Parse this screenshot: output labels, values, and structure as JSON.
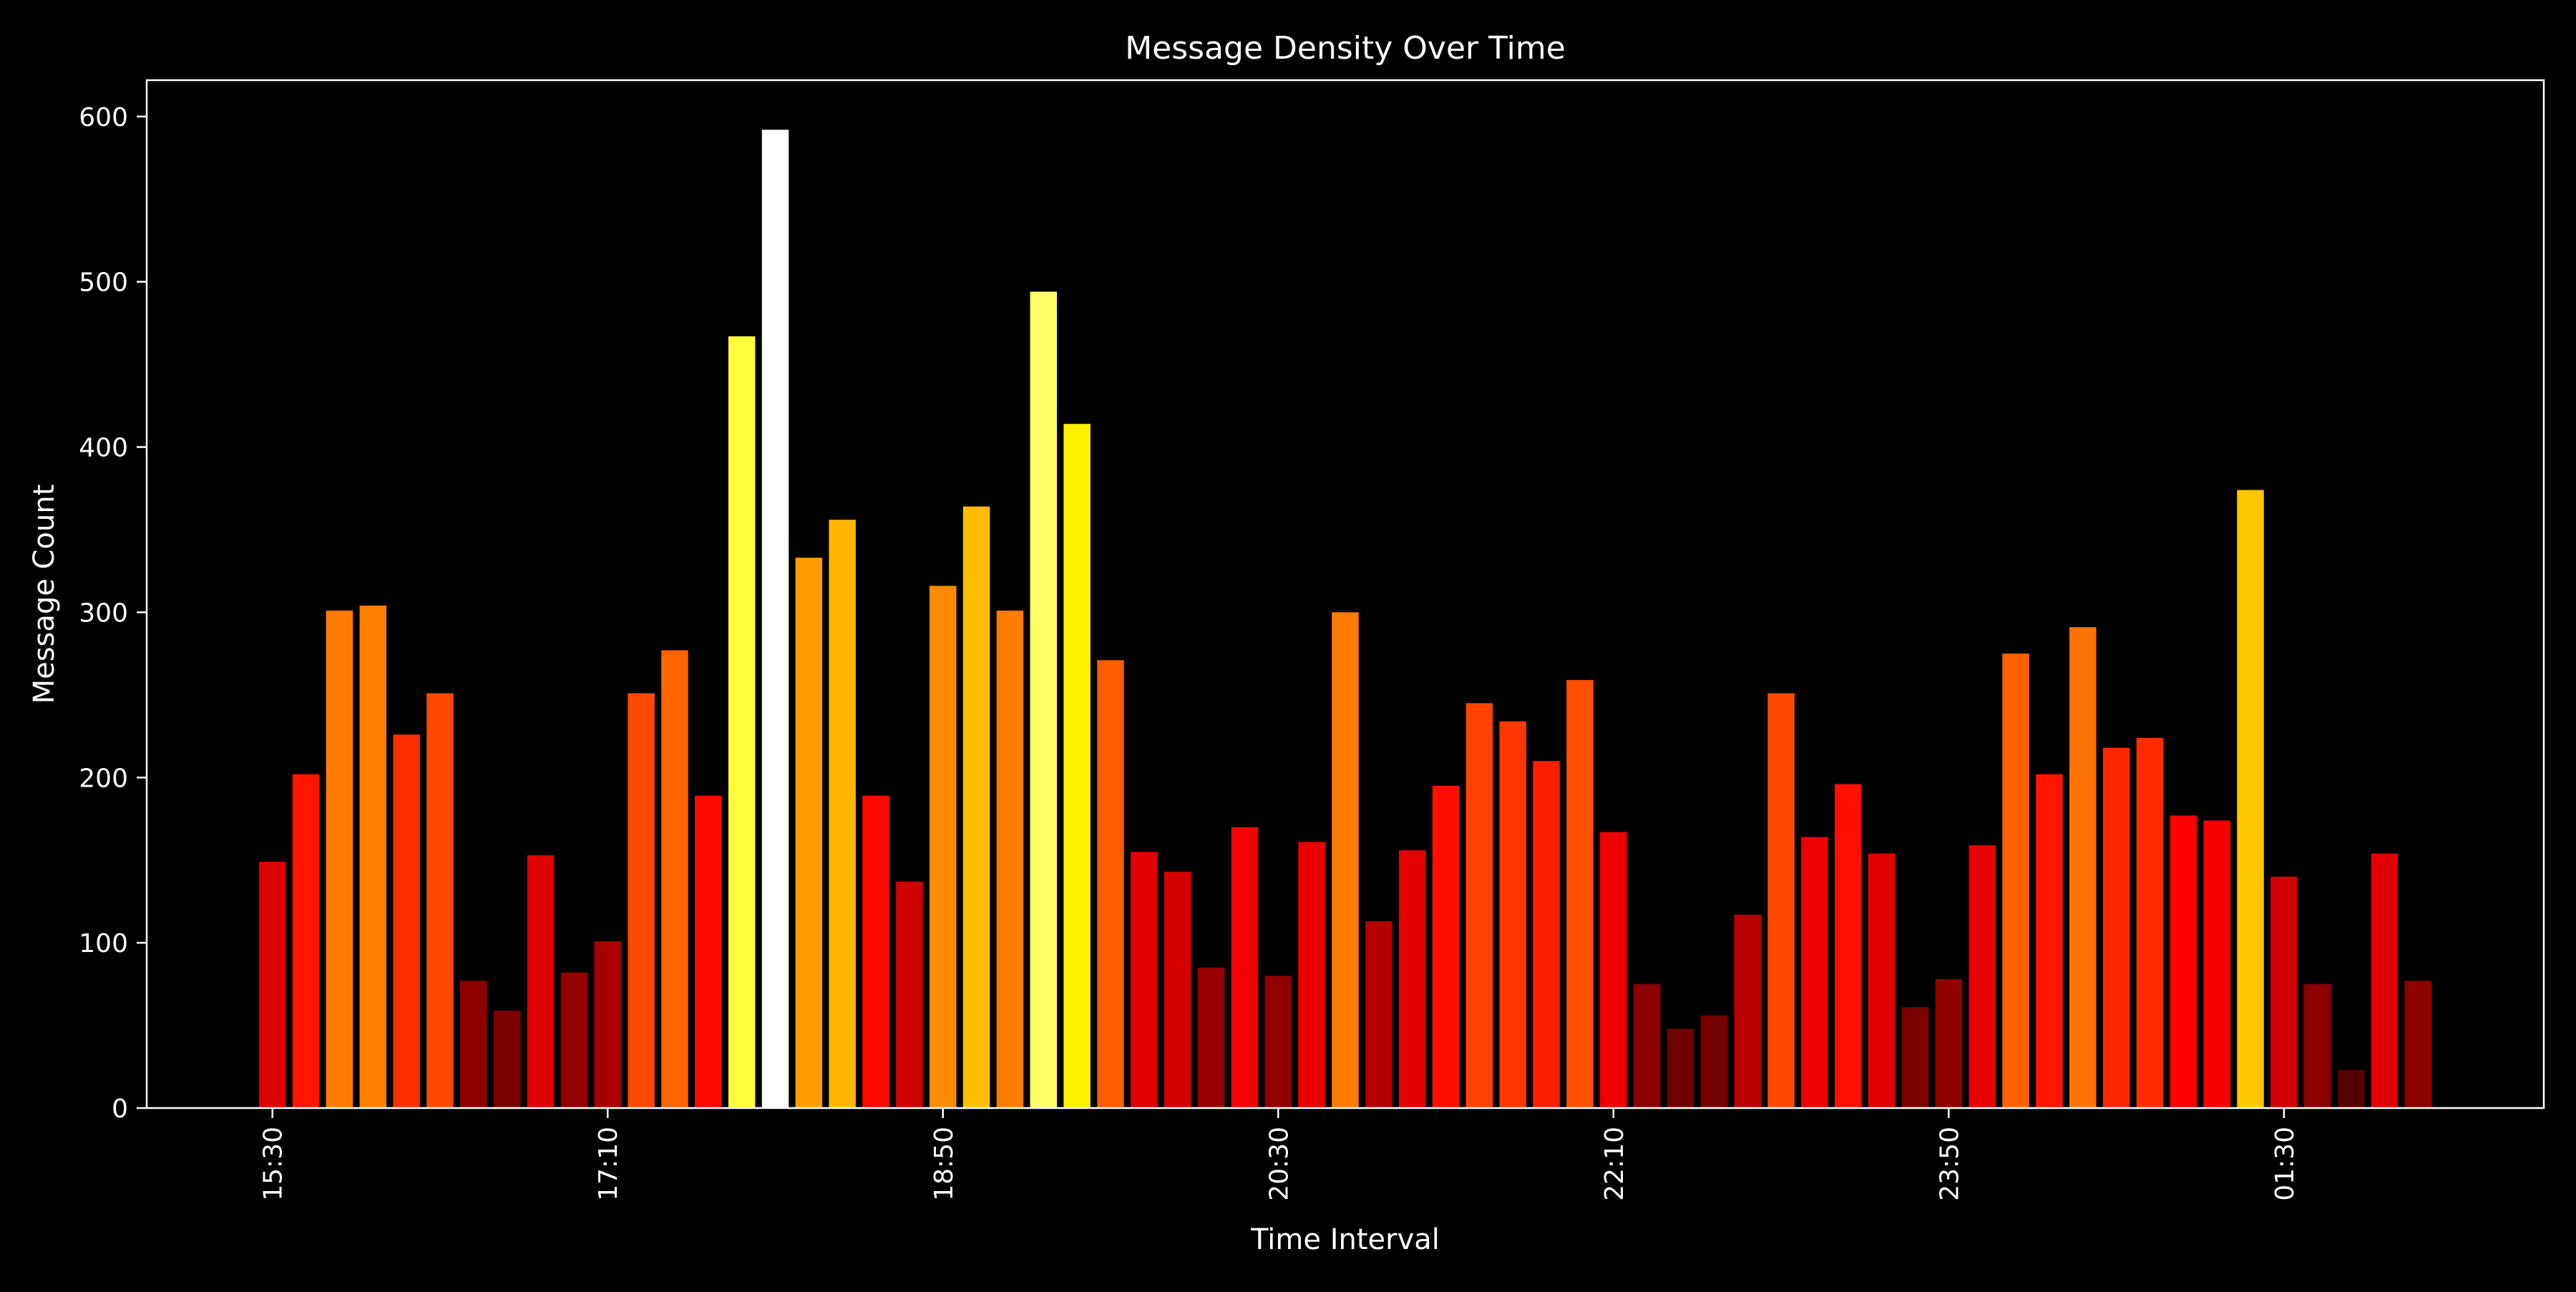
{
  "chart_data": {
    "type": "bar",
    "title": "Message Density Over Time",
    "xlabel": "Time Interval",
    "ylabel": "Message Count",
    "ylim": [
      0,
      622
    ],
    "xlim": [
      -3.75,
      67.75
    ],
    "grid": false,
    "legend": "none",
    "yticks": [
      0,
      100,
      200,
      300,
      400,
      500,
      600
    ],
    "xticks": [
      {
        "index": 0,
        "label": "15:30"
      },
      {
        "index": 10,
        "label": "17:10"
      },
      {
        "index": 20,
        "label": "18:50"
      },
      {
        "index": 30,
        "label": "20:30"
      },
      {
        "index": 40,
        "label": "22:10"
      },
      {
        "index": 50,
        "label": "23:50"
      },
      {
        "index": 60,
        "label": "01:30"
      }
    ],
    "colormap": "hot",
    "values": [
      149,
      202,
      301,
      304,
      226,
      251,
      77,
      59,
      153,
      82,
      101,
      251,
      277,
      189,
      467,
      592,
      333,
      356,
      189,
      137,
      316,
      364,
      301,
      494,
      414,
      271,
      155,
      143,
      85,
      170,
      80,
      161,
      300,
      113,
      156,
      195,
      245,
      234,
      210,
      259,
      167,
      75,
      48,
      56,
      117,
      251,
      164,
      196,
      154,
      61,
      78,
      159,
      275,
      202,
      291,
      218,
      224,
      177,
      174,
      374,
      140,
      75,
      23,
      154,
      77
    ]
  }
}
